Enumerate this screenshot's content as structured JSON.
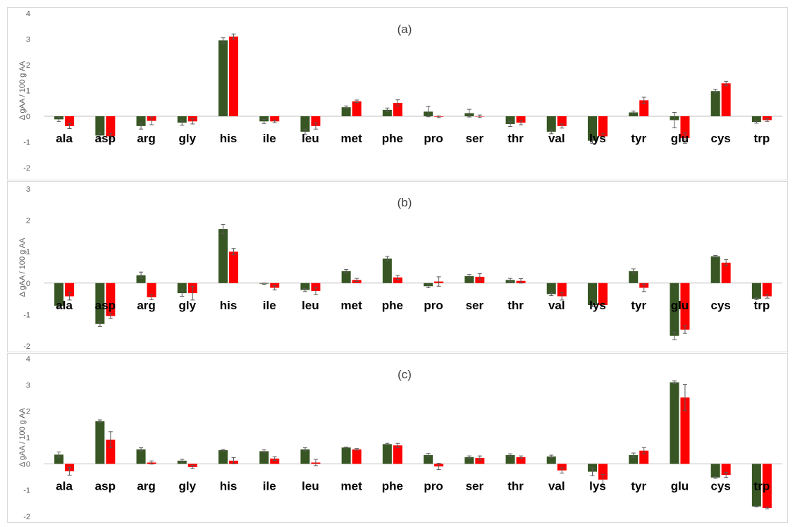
{
  "colors": {
    "series1": "#375623",
    "series2": "#ff0000",
    "border": "#d9d9d9",
    "axis": "#bfbfbf",
    "errbar": "#595959"
  },
  "chart_data": [
    {
      "type": "bar",
      "title": "(a)",
      "ylabel": "Δ gAA / 100 g AA",
      "ylim": [
        -2,
        4
      ],
      "yticks": [
        -2,
        -1,
        0,
        1,
        2,
        3,
        4
      ],
      "categories": [
        "ala",
        "asp",
        "arg",
        "gly",
        "his",
        "ile",
        "leu",
        "met",
        "phe",
        "pro",
        "ser",
        "thr",
        "val",
        "lys",
        "tyr",
        "glu",
        "cys",
        "trp"
      ],
      "series": [
        {
          "values": [
            -0.12,
            -0.75,
            -0.38,
            -0.25,
            2.95,
            -0.2,
            -0.6,
            0.35,
            0.25,
            0.18,
            0.12,
            -0.3,
            -0.6,
            -0.95,
            0.15,
            -0.15,
            0.98,
            -0.22
          ],
          "errors": [
            0.08,
            0.1,
            0.12,
            0.1,
            0.1,
            0.08,
            0.1,
            0.05,
            0.07,
            0.2,
            0.15,
            0.1,
            0.08,
            0.1,
            0.05,
            0.3,
            0.07,
            0.05
          ]
        },
        {
          "values": [
            -0.38,
            -0.78,
            -0.18,
            -0.2,
            3.1,
            -0.2,
            -0.38,
            0.58,
            0.52,
            -0.02,
            0.0,
            -0.25,
            -0.38,
            -0.78,
            0.62,
            -0.85,
            1.28,
            -0.15
          ],
          "errors": [
            0.1,
            0.1,
            0.15,
            0.1,
            0.1,
            0.05,
            0.12,
            0.05,
            0.12,
            0.03,
            0.05,
            0.08,
            0.08,
            0.1,
            0.12,
            0.2,
            0.08,
            0.05
          ]
        }
      ]
    },
    {
      "type": "bar",
      "title": "(b)",
      "ylabel": "Δ gAA / 100 g AA",
      "ylim": [
        -2,
        3
      ],
      "yticks": [
        -2,
        -1,
        0,
        1,
        2,
        3
      ],
      "categories": [
        "ala",
        "asp",
        "arg",
        "gly",
        "his",
        "ile",
        "leu",
        "met",
        "phe",
        "pro",
        "ser",
        "thr",
        "val",
        "lys",
        "tyr",
        "glu",
        "cys",
        "trp"
      ],
      "series": [
        {
          "values": [
            -0.72,
            -1.3,
            0.25,
            -0.32,
            1.72,
            -0.02,
            -0.22,
            0.38,
            0.78,
            -0.1,
            0.22,
            0.1,
            -0.35,
            -0.7,
            0.38,
            -1.68,
            0.85,
            -0.5
          ],
          "errors": [
            0.05,
            0.08,
            0.1,
            0.1,
            0.15,
            0.02,
            0.05,
            0.05,
            0.07,
            0.05,
            0.05,
            0.05,
            0.05,
            0.05,
            0.07,
            0.12,
            0.03,
            0.03
          ]
        },
        {
          "values": [
            -0.42,
            -1.05,
            -0.45,
            -0.32,
            1.0,
            -0.15,
            -0.25,
            0.1,
            0.18,
            0.05,
            0.2,
            0.07,
            -0.42,
            -0.7,
            -0.15,
            -1.48,
            0.65,
            -0.42
          ],
          "errors": [
            0.12,
            0.08,
            0.08,
            0.22,
            0.1,
            0.07,
            0.12,
            0.05,
            0.07,
            0.15,
            0.1,
            0.07,
            0.12,
            0.05,
            0.12,
            0.12,
            0.1,
            0.06
          ]
        }
      ]
    },
    {
      "type": "bar",
      "title": "(c)",
      "ylabel": "Δ gAA / 100 g AA",
      "ylim": [
        -2,
        4
      ],
      "yticks": [
        -2,
        -1,
        0,
        1,
        2,
        3,
        4
      ],
      "categories": [
        "ala",
        "asp",
        "arg",
        "gly",
        "his",
        "ile",
        "leu",
        "met",
        "phe",
        "pro",
        "ser",
        "thr",
        "val",
        "lys",
        "tyr",
        "glu",
        "cys",
        "trp"
      ],
      "series": [
        {
          "values": [
            0.35,
            1.62,
            0.55,
            0.12,
            0.52,
            0.48,
            0.55,
            0.62,
            0.75,
            0.33,
            0.25,
            0.33,
            0.28,
            -0.3,
            0.33,
            3.1,
            -0.52,
            -1.62
          ],
          "errors": [
            0.1,
            0.05,
            0.06,
            0.05,
            0.03,
            0.05,
            0.06,
            0.02,
            0.03,
            0.06,
            0.05,
            0.05,
            0.05,
            0.15,
            0.08,
            0.05,
            0.03,
            0.02
          ]
        },
        {
          "values": [
            -0.28,
            0.92,
            0.05,
            -0.12,
            0.12,
            0.2,
            0.05,
            0.55,
            0.7,
            -0.1,
            0.22,
            0.25,
            -0.25,
            -0.6,
            0.5,
            2.52,
            -0.42,
            -1.68
          ],
          "errors": [
            0.15,
            0.3,
            0.06,
            0.06,
            0.12,
            0.07,
            0.12,
            0.03,
            0.08,
            0.12,
            0.08,
            0.05,
            0.1,
            0.2,
            0.12,
            0.5,
            0.1,
            0.03
          ]
        }
      ]
    }
  ]
}
